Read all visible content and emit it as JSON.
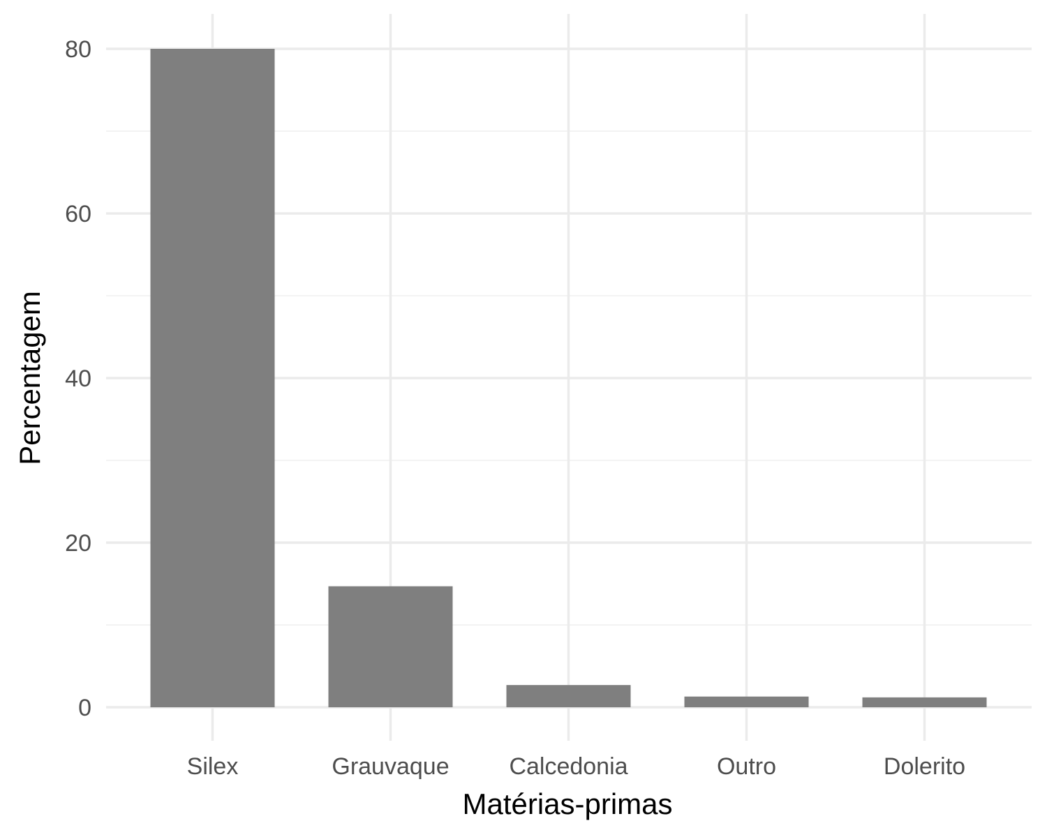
{
  "chart_data": {
    "type": "bar",
    "categories": [
      "Silex",
      "Grauvaque",
      "Calcedonia",
      "Outro",
      "Dolerito"
    ],
    "values": [
      80.0,
      14.7,
      2.7,
      1.3,
      1.2
    ],
    "xlabel": "Matérias-primas",
    "ylabel": "Percentagem",
    "ylim": [
      0,
      80
    ],
    "yticks": [
      0,
      20,
      40,
      60,
      80
    ],
    "grid": true,
    "legend": "none",
    "colors": {
      "bar": "#7f7f7f",
      "grid_major": "#ebebeb",
      "grid_minor": "#f3f3f3",
      "tick_text": "#4d4d4d",
      "title_text": "#000000"
    }
  }
}
